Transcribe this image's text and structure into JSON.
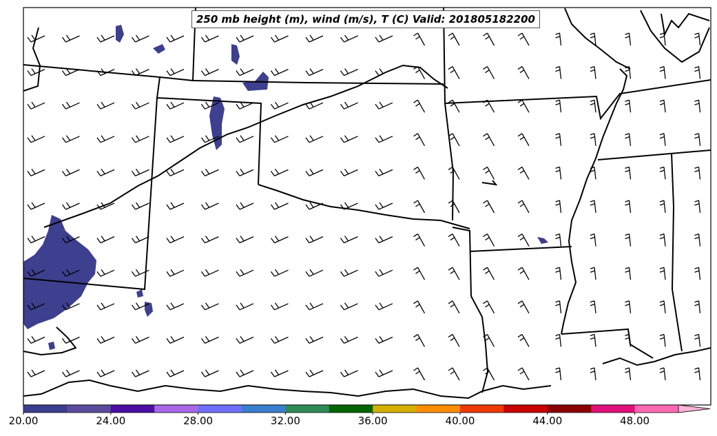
{
  "title": "250 mb height (m), wind (m/s), T (C) Valid: 201805182200",
  "colorbar": {
    "tick_labels": [
      "20.00",
      "24.00",
      "28.00",
      "32.00",
      "36.00",
      "40.00",
      "44.00",
      "48.00"
    ],
    "tick_values": [
      20,
      24,
      28,
      32,
      36,
      40,
      44,
      48
    ],
    "range": [
      20,
      50
    ],
    "extend": "max",
    "colors": [
      "#3b3f8f",
      "#5a4c9c",
      "#4b0fa4",
      "#a868e6",
      "#6f6ffb",
      "#3a7fcd",
      "#2e8b57",
      "#006400",
      "#d4b000",
      "#ff8c00",
      "#ee3a00",
      "#c80000",
      "#8b0000",
      "#e0107a",
      "#ff69b4",
      "#ffb3d9"
    ]
  },
  "shading_color": "#3d3f8f",
  "wind_barbs": {
    "rows": 11,
    "cols": 20,
    "color": "#000000"
  }
}
